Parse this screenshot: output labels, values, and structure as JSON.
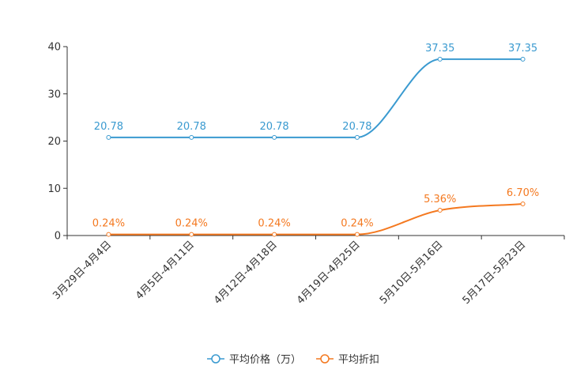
{
  "chart_data": {
    "type": "line",
    "categories": [
      "3月29日-4月4日",
      "4月5日-4月11日",
      "4月12日-4月18日",
      "4月19日-4月25日",
      "5月10日-5月16日",
      "5月17日-5月23日"
    ],
    "ylim": [
      0,
      40
    ],
    "yticks": [
      0,
      10,
      20,
      30,
      40
    ],
    "series": [
      {
        "name": "平均价格（万）",
        "color": "#3a9ad0",
        "values": [
          20.78,
          20.78,
          20.78,
          20.78,
          37.35,
          37.35
        ],
        "labels": [
          "20.78",
          "20.78",
          "20.78",
          "20.78",
          "37.35",
          "37.35"
        ]
      },
      {
        "name": "平均折扣",
        "color": "#f47920",
        "values": [
          0.24,
          0.24,
          0.24,
          0.24,
          5.36,
          6.7
        ],
        "labels": [
          "0.24%",
          "0.24%",
          "0.24%",
          "0.24%",
          "5.36%",
          "6.70%"
        ]
      }
    ],
    "legend_position": "bottom-center"
  }
}
